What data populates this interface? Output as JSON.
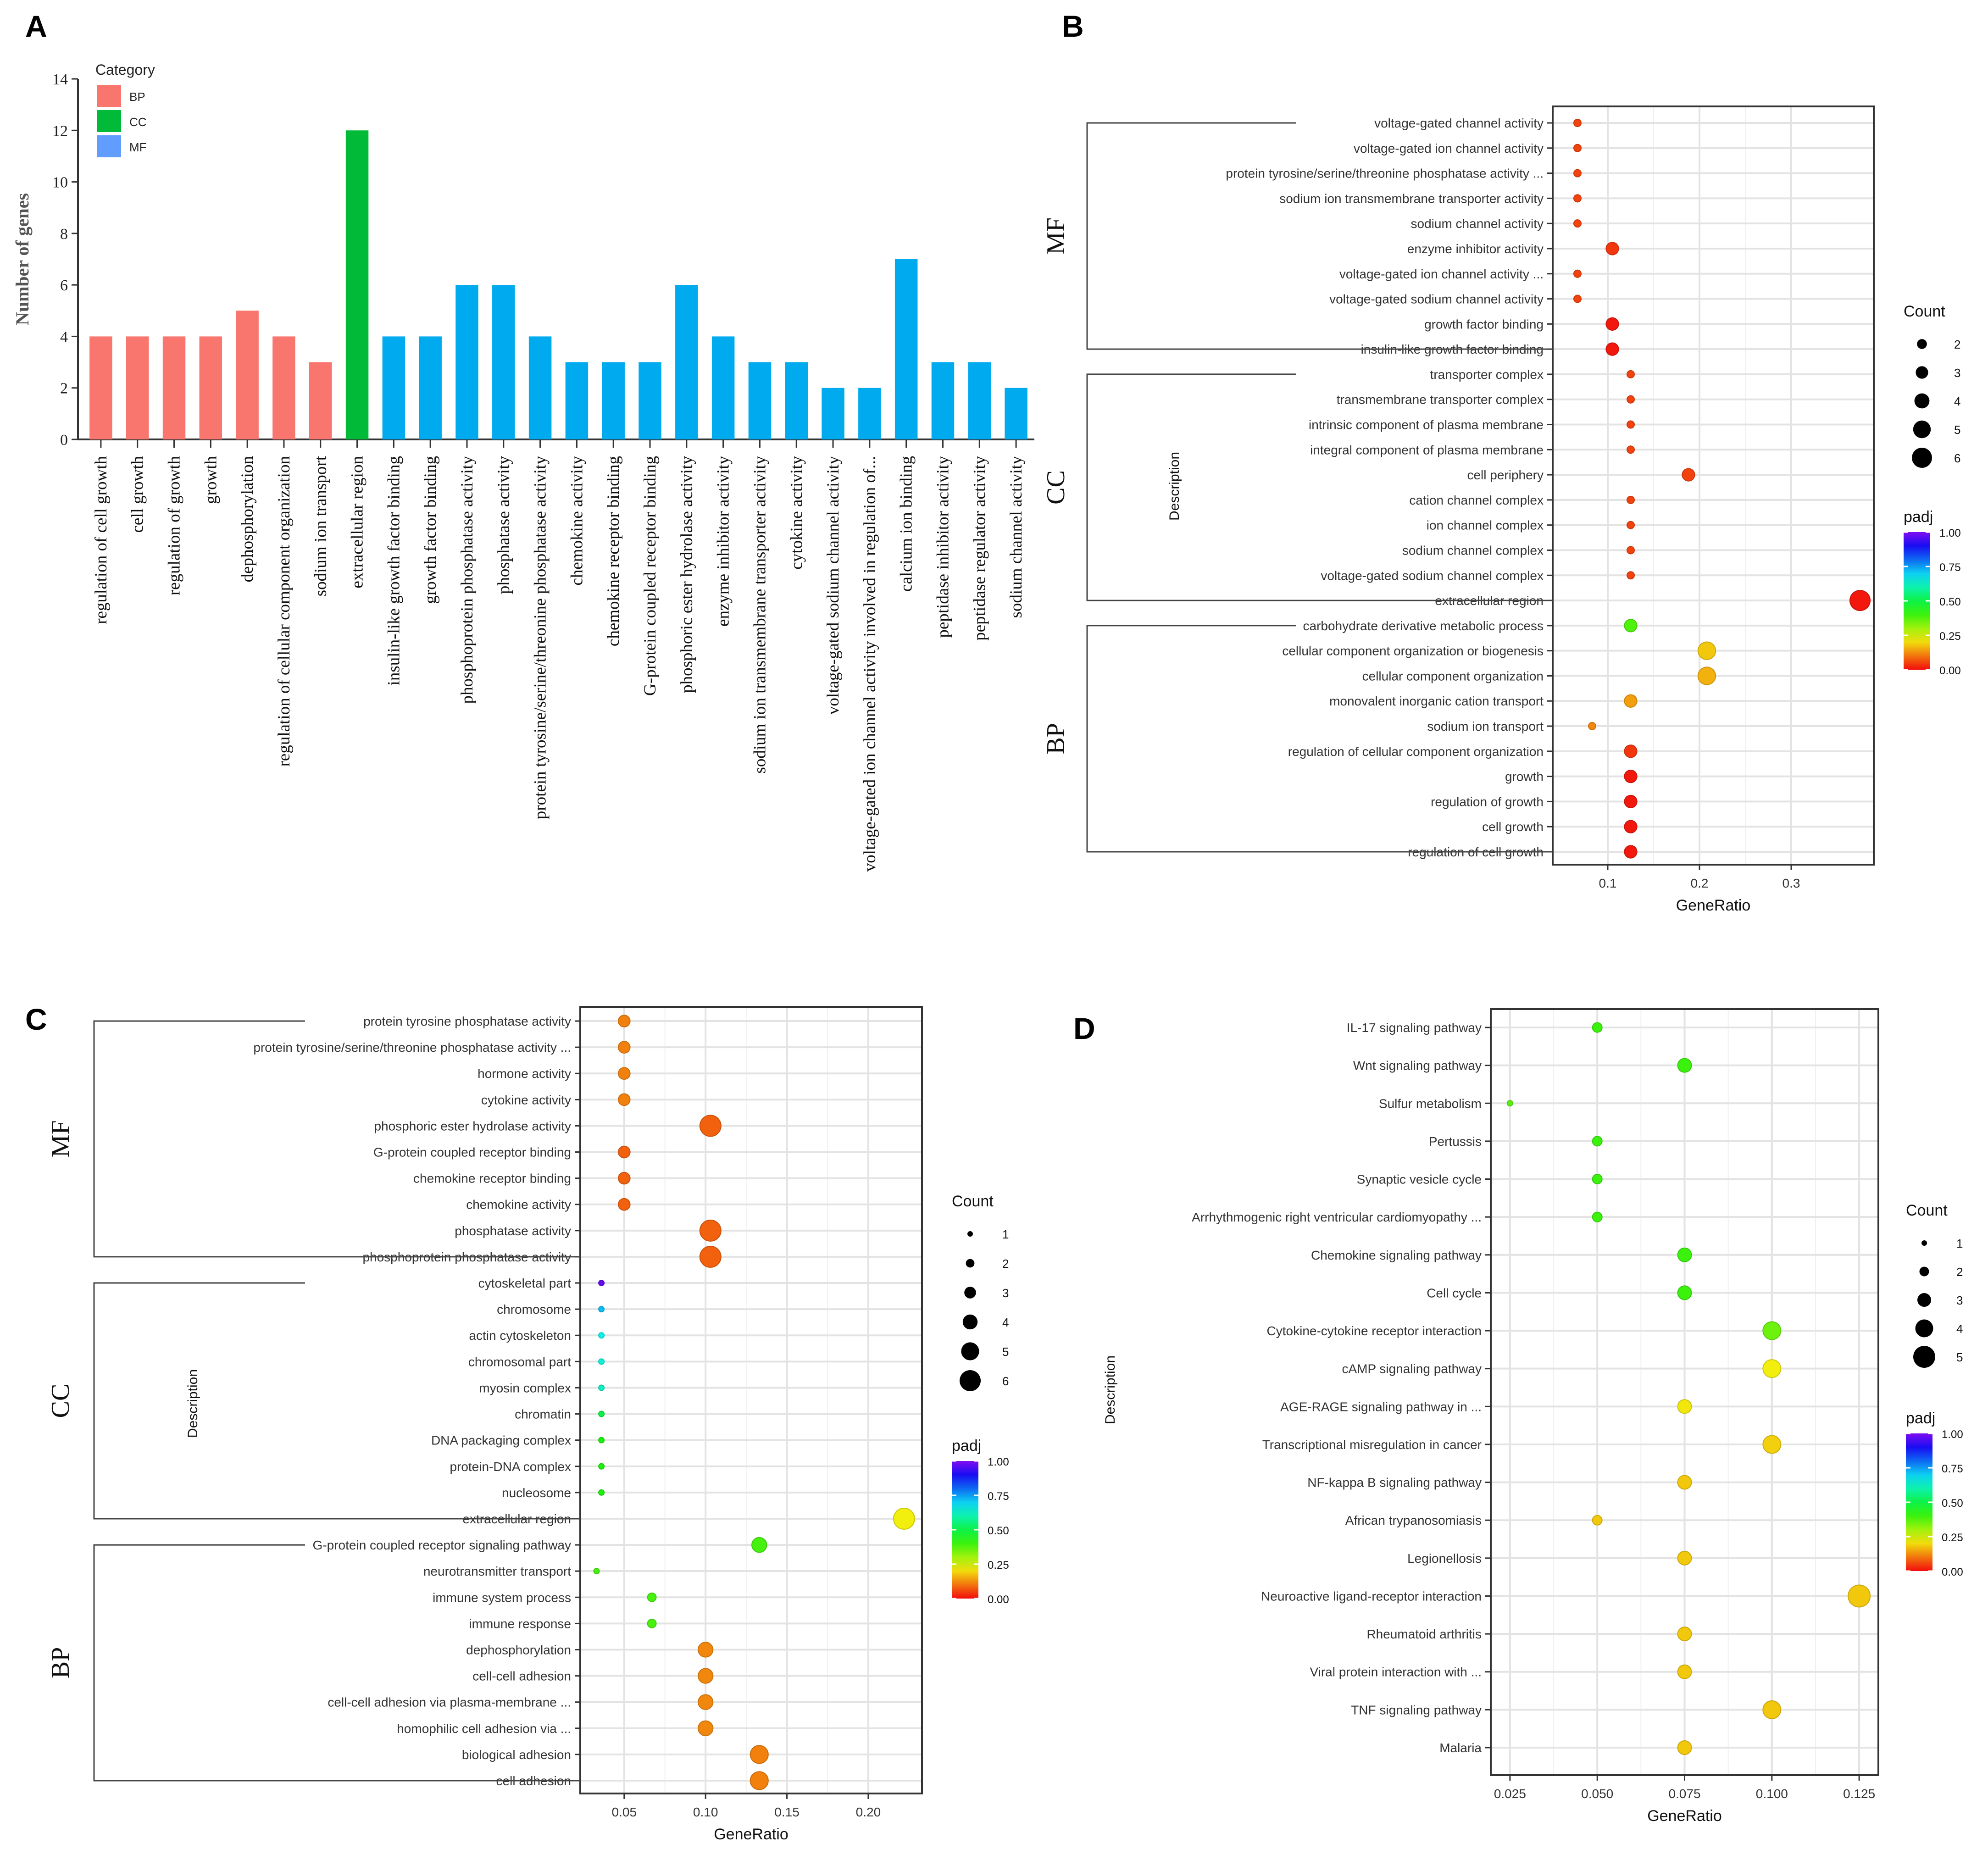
{
  "figure": {
    "colors": {
      "bp": "#F8766D",
      "cc": "#00BA38",
      "mf": "#00AAEE",
      "panel_border": "#333333",
      "grid": "#E3E3E3",
      "text": "#333333"
    }
  },
  "chart_data": [
    {
      "panel": "A",
      "type": "bar",
      "title": "",
      "ylabel": "Number of genes",
      "xlabel": "",
      "ylim": [
        0,
        14
      ],
      "yticks": [
        0,
        2,
        4,
        6,
        8,
        10,
        12,
        14
      ],
      "legend": {
        "title": "Category",
        "position": "top-left",
        "items": [
          {
            "label": "BP",
            "color": "#F8766D"
          },
          {
            "label": "CC",
            "color": "#00BA38"
          },
          {
            "label": "MF",
            "color": "#619CFF"
          }
        ]
      },
      "categories": [
        "regulation of cell growth",
        "cell growth",
        "regulation of growth",
        "growth",
        "dephosphorylation",
        "regulation of cellular component organization",
        "sodium ion transport",
        "extracellular region",
        "insulin-like growth factor binding",
        "growth factor binding",
        "phosphoprotein phosphatase activity",
        "phosphatase activity",
        "protein tyrosine/serine/threonine phosphatase activity",
        "chemokine activity",
        "chemokine receptor binding",
        "G-protein coupled receptor binding",
        "phosphoric ester hydrolase activity",
        "enzyme inhibitor activity",
        "sodium ion transmembrane transporter activity",
        "cytokine activity",
        "voltage-gated sodium channel activity",
        "voltage-gated ion channel activity involved in regulation of...",
        "calcium ion binding",
        "peptidase inhibitor activity",
        "peptidase regulator activity",
        "sodium channel activity"
      ],
      "values": [
        4,
        4,
        4,
        4,
        5,
        4,
        3,
        12,
        4,
        4,
        6,
        6,
        4,
        3,
        3,
        3,
        6,
        4,
        3,
        3,
        2,
        2,
        7,
        3,
        3,
        2
      ],
      "groups": [
        "BP",
        "BP",
        "BP",
        "BP",
        "BP",
        "BP",
        "BP",
        "CC",
        "MF",
        "MF",
        "MF",
        "MF",
        "MF",
        "MF",
        "MF",
        "MF",
        "MF",
        "MF",
        "MF",
        "MF",
        "MF",
        "MF",
        "MF",
        "MF",
        "MF",
        "MF"
      ]
    },
    {
      "panel": "B",
      "type": "scatter",
      "xlabel": "GeneRatio",
      "ylabel": "Description",
      "xlim": [
        0.04,
        0.39
      ],
      "xticks": [
        0.1,
        0.2,
        0.3
      ],
      "xtick_labels": [
        "0.1",
        "0.2",
        "0.3"
      ],
      "size_legend": {
        "title": "Count",
        "values": [
          2,
          3,
          4,
          5,
          6
        ]
      },
      "size_domain": [
        1,
        6
      ],
      "color_legend": {
        "title": "padj",
        "ticks": [
          "1.00",
          "0.75",
          "0.50",
          "0.25",
          "0.00"
        ]
      },
      "groups": [
        {
          "label": "MF",
          "first": 0,
          "last": 9
        },
        {
          "label": "CC",
          "first": 10,
          "last": 19
        },
        {
          "label": "BP",
          "first": 20,
          "last": 29
        }
      ],
      "terms": [
        {
          "label": "voltage-gated channel activity",
          "ratio": 0.067,
          "count": 1,
          "padj": 0.05
        },
        {
          "label": "voltage-gated ion channel activity",
          "ratio": 0.067,
          "count": 1,
          "padj": 0.05
        },
        {
          "label": "protein tyrosine/serine/threonine phosphatase activity ...",
          "ratio": 0.067,
          "count": 1,
          "padj": 0.05
        },
        {
          "label": "sodium ion transmembrane transporter activity",
          "ratio": 0.067,
          "count": 1,
          "padj": 0.05
        },
        {
          "label": "sodium channel activity",
          "ratio": 0.067,
          "count": 1,
          "padj": 0.05
        },
        {
          "label": "enzyme inhibitor activity",
          "ratio": 0.105,
          "count": 3,
          "padj": 0.04
        },
        {
          "label": "voltage-gated ion channel activity ...",
          "ratio": 0.067,
          "count": 1,
          "padj": 0.05
        },
        {
          "label": "voltage-gated sodium channel activity",
          "ratio": 0.067,
          "count": 1,
          "padj": 0.05
        },
        {
          "label": "growth factor binding",
          "ratio": 0.105,
          "count": 3,
          "padj": 0.01
        },
        {
          "label": "insulin-like growth factor binding",
          "ratio": 0.105,
          "count": 3,
          "padj": 0.01
        },
        {
          "label": "transporter complex",
          "ratio": 0.125,
          "count": 1,
          "padj": 0.05
        },
        {
          "label": "transmembrane transporter complex",
          "ratio": 0.125,
          "count": 1,
          "padj": 0.05
        },
        {
          "label": "intrinsic component of plasma membrane",
          "ratio": 0.125,
          "count": 1,
          "padj": 0.05
        },
        {
          "label": "integral component of plasma membrane",
          "ratio": 0.125,
          "count": 1,
          "padj": 0.05
        },
        {
          "label": "cell periphery",
          "ratio": 0.188,
          "count": 3,
          "padj": 0.05
        },
        {
          "label": "cation channel complex",
          "ratio": 0.125,
          "count": 1,
          "padj": 0.05
        },
        {
          "label": "ion channel complex",
          "ratio": 0.125,
          "count": 1,
          "padj": 0.05
        },
        {
          "label": "sodium channel complex",
          "ratio": 0.125,
          "count": 1,
          "padj": 0.05
        },
        {
          "label": "voltage-gated sodium channel complex",
          "ratio": 0.125,
          "count": 1,
          "padj": 0.05
        },
        {
          "label": "extracellular region",
          "ratio": 0.375,
          "count": 6,
          "padj": 0.01
        },
        {
          "label": "carbohydrate derivative metabolic process",
          "ratio": 0.125,
          "count": 3,
          "padj": 0.38
        },
        {
          "label": "cellular component organization or biogenesis",
          "ratio": 0.208,
          "count": 5,
          "padj": 0.18
        },
        {
          "label": "cellular component organization",
          "ratio": 0.208,
          "count": 5,
          "padj": 0.16
        },
        {
          "label": "monovalent inorganic cation transport",
          "ratio": 0.125,
          "count": 3,
          "padj": 0.14
        },
        {
          "label": "sodium ion transport",
          "ratio": 0.083,
          "count": 1,
          "padj": 0.12
        },
        {
          "label": "regulation of cellular component organization",
          "ratio": 0.125,
          "count": 3,
          "padj": 0.04
        },
        {
          "label": "growth",
          "ratio": 0.125,
          "count": 3,
          "padj": 0.01
        },
        {
          "label": "regulation of growth",
          "ratio": 0.125,
          "count": 3,
          "padj": 0.01
        },
        {
          "label": "cell growth",
          "ratio": 0.125,
          "count": 3,
          "padj": 0.01
        },
        {
          "label": "regulation of cell growth",
          "ratio": 0.125,
          "count": 3,
          "padj": 0.01
        }
      ]
    },
    {
      "panel": "C",
      "type": "scatter",
      "xlabel": "GeneRatio",
      "ylabel": "Description",
      "xlim": [
        0.023,
        0.233
      ],
      "xticks": [
        0.05,
        0.1,
        0.15,
        0.2
      ],
      "xtick_labels": [
        "0.05",
        "0.10",
        "0.15",
        "0.20"
      ],
      "size_legend": {
        "title": "Count",
        "values": [
          1,
          2,
          3,
          4,
          5,
          6
        ]
      },
      "size_domain": [
        1,
        6
      ],
      "color_legend": {
        "title": "padj",
        "ticks": [
          "1.00",
          "0.75",
          "0.50",
          "0.25",
          "0.00"
        ]
      },
      "groups": [
        {
          "label": "MF",
          "first": 0,
          "last": 9
        },
        {
          "label": "CC",
          "first": 10,
          "last": 19
        },
        {
          "label": "BP",
          "first": 20,
          "last": 29
        }
      ],
      "terms": [
        {
          "label": "protein tyrosine phosphatase activity",
          "ratio": 0.05,
          "count": 3,
          "padj": 0.11
        },
        {
          "label": "protein tyrosine/serine/threonine phosphatase activity ...",
          "ratio": 0.05,
          "count": 3,
          "padj": 0.11
        },
        {
          "label": "hormone activity",
          "ratio": 0.05,
          "count": 3,
          "padj": 0.11
        },
        {
          "label": "cytokine activity",
          "ratio": 0.05,
          "count": 3,
          "padj": 0.11
        },
        {
          "label": "phosphoric ester hydrolase activity",
          "ratio": 0.103,
          "count": 6,
          "padj": 0.08
        },
        {
          "label": "G-protein coupled receptor binding",
          "ratio": 0.05,
          "count": 3,
          "padj": 0.08
        },
        {
          "label": "chemokine receptor binding",
          "ratio": 0.05,
          "count": 3,
          "padj": 0.08
        },
        {
          "label": "chemokine activity",
          "ratio": 0.05,
          "count": 3,
          "padj": 0.08
        },
        {
          "label": "phosphatase activity",
          "ratio": 0.103,
          "count": 6,
          "padj": 0.08
        },
        {
          "label": "phosphoprotein phosphatase activity",
          "ratio": 0.103,
          "count": 6,
          "padj": 0.08
        },
        {
          "label": "cytoskeletal part",
          "ratio": 0.036,
          "count": 1,
          "padj": 0.97
        },
        {
          "label": "chromosome",
          "ratio": 0.036,
          "count": 1,
          "padj": 0.72
        },
        {
          "label": "actin cytoskeleton",
          "ratio": 0.036,
          "count": 1,
          "padj": 0.66
        },
        {
          "label": "chromosomal part",
          "ratio": 0.036,
          "count": 1,
          "padj": 0.64
        },
        {
          "label": "myosin complex",
          "ratio": 0.036,
          "count": 1,
          "padj": 0.62
        },
        {
          "label": "chromatin",
          "ratio": 0.036,
          "count": 1,
          "padj": 0.5
        },
        {
          "label": "DNA packaging complex",
          "ratio": 0.036,
          "count": 1,
          "padj": 0.43
        },
        {
          "label": "protein-DNA complex",
          "ratio": 0.036,
          "count": 1,
          "padj": 0.43
        },
        {
          "label": "nucleosome",
          "ratio": 0.036,
          "count": 1,
          "padj": 0.43
        },
        {
          "label": "extracellular region",
          "ratio": 0.222,
          "count": 6,
          "padj": 0.22
        },
        {
          "label": "G-protein coupled receptor signaling pathway",
          "ratio": 0.133,
          "count": 4,
          "padj": 0.39
        },
        {
          "label": "neurotransmitter transport",
          "ratio": 0.033,
          "count": 1,
          "padj": 0.39
        },
        {
          "label": "immune system process",
          "ratio": 0.067,
          "count": 2,
          "padj": 0.39
        },
        {
          "label": "immune response",
          "ratio": 0.067,
          "count": 2,
          "padj": 0.39
        },
        {
          "label": "dephosphorylation",
          "ratio": 0.1,
          "count": 4,
          "padj": 0.12
        },
        {
          "label": "cell-cell adhesion",
          "ratio": 0.1,
          "count": 4,
          "padj": 0.12
        },
        {
          "label": "cell-cell adhesion via plasma-membrane ...",
          "ratio": 0.1,
          "count": 4,
          "padj": 0.12
        },
        {
          "label": "homophilic cell adhesion via ...",
          "ratio": 0.1,
          "count": 4,
          "padj": 0.12
        },
        {
          "label": "biological adhesion",
          "ratio": 0.133,
          "count": 5,
          "padj": 0.11
        },
        {
          "label": "cell adhesion",
          "ratio": 0.133,
          "count": 5,
          "padj": 0.11
        }
      ]
    },
    {
      "panel": "D",
      "type": "scatter",
      "xlabel": "GeneRatio",
      "ylabel": "Description",
      "xlim": [
        0.0195,
        0.1305
      ],
      "xticks": [
        0.025,
        0.05,
        0.075,
        0.1,
        0.125
      ],
      "xtick_labels": [
        "0.025",
        "0.050",
        "0.075",
        "0.100",
        "0.125"
      ],
      "size_legend": {
        "title": "Count",
        "values": [
          1,
          2,
          3,
          4,
          5
        ]
      },
      "size_domain": [
        1,
        5
      ],
      "color_legend": {
        "title": "padj",
        "ticks": [
          "1.00",
          "0.75",
          "0.50",
          "0.25",
          "0.00"
        ]
      },
      "groups": [],
      "terms": [
        {
          "label": "IL-17 signaling pathway",
          "ratio": 0.05,
          "count": 2,
          "padj": 0.4
        },
        {
          "label": "Wnt signaling pathway",
          "ratio": 0.075,
          "count": 3,
          "padj": 0.4
        },
        {
          "label": "Sulfur metabolism",
          "ratio": 0.025,
          "count": 1,
          "padj": 0.37
        },
        {
          "label": "Pertussis",
          "ratio": 0.05,
          "count": 2,
          "padj": 0.4
        },
        {
          "label": "Synaptic vesicle cycle",
          "ratio": 0.05,
          "count": 2,
          "padj": 0.4
        },
        {
          "label": "Arrhythmogenic right ventricular cardiomyopathy ...",
          "ratio": 0.05,
          "count": 2,
          "padj": 0.4
        },
        {
          "label": "Chemokine signaling pathway",
          "ratio": 0.075,
          "count": 3,
          "padj": 0.4
        },
        {
          "label": "Cell cycle",
          "ratio": 0.075,
          "count": 3,
          "padj": 0.4
        },
        {
          "label": "Cytokine-cytokine receptor interaction",
          "ratio": 0.1,
          "count": 4,
          "padj": 0.35
        },
        {
          "label": "cAMP signaling pathway",
          "ratio": 0.1,
          "count": 4,
          "padj": 0.22
        },
        {
          "label": "AGE-RAGE signaling pathway in ...",
          "ratio": 0.075,
          "count": 3,
          "padj": 0.21
        },
        {
          "label": "Transcriptional misregulation in cancer",
          "ratio": 0.1,
          "count": 4,
          "padj": 0.19
        },
        {
          "label": "NF-kappa B signaling pathway",
          "ratio": 0.075,
          "count": 3,
          "padj": 0.18
        },
        {
          "label": "African trypanosomiasis",
          "ratio": 0.05,
          "count": 2,
          "padj": 0.18
        },
        {
          "label": "Legionellosis",
          "ratio": 0.075,
          "count": 3,
          "padj": 0.18
        },
        {
          "label": "Neuroactive ligand-receptor interaction",
          "ratio": 0.125,
          "count": 5,
          "padj": 0.18
        },
        {
          "label": "Rheumatoid arthritis",
          "ratio": 0.075,
          "count": 3,
          "padj": 0.18
        },
        {
          "label": "Viral protein interaction with ...",
          "ratio": 0.075,
          "count": 3,
          "padj": 0.18
        },
        {
          "label": "TNF signaling pathway",
          "ratio": 0.1,
          "count": 4,
          "padj": 0.18
        },
        {
          "label": "Malaria",
          "ratio": 0.075,
          "count": 3,
          "padj": 0.18
        }
      ]
    }
  ]
}
